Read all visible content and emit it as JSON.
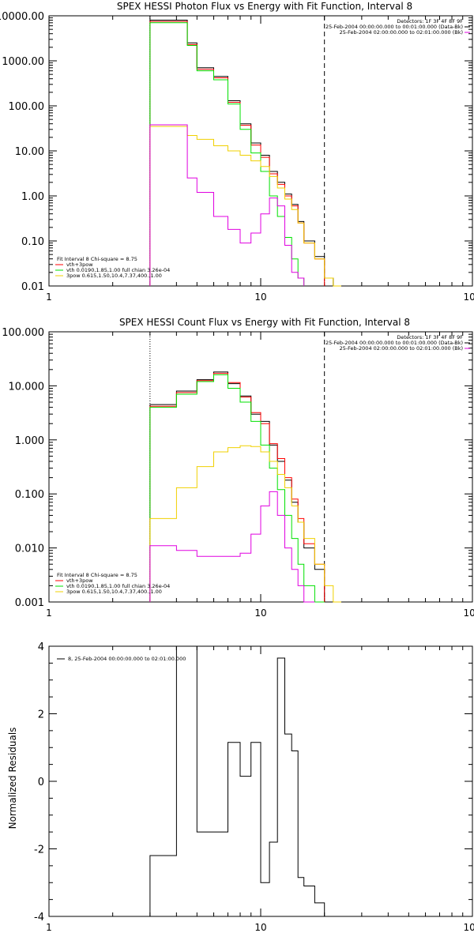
{
  "colors": {
    "black": "#000000",
    "red": "#ff0000",
    "green": "#00e000",
    "yellow": "#f0d000",
    "magenta": "#e000e0"
  },
  "chart_data": [
    {
      "type": "line",
      "title": "SPEX HESSI Photon Flux vs Energy with Fit Function, Interval 8",
      "scale": {
        "x": "log",
        "y": "log"
      },
      "xlim": [
        1,
        100
      ],
      "ylim": [
        0.01,
        10000
      ],
      "xticks": [
        "1",
        "10",
        "100"
      ],
      "yticks": [
        "10000.00",
        "1000.00",
        "100.00",
        "10.00",
        "1.00",
        "0.10",
        "0.01"
      ],
      "vline_dotted": 3,
      "vline_dashed": 20,
      "header": {
        "detectors": "Detectors: 1F 3F 4F 8F 9F",
        "line1": "25-Feb-2004 00:00:00.000 to 00:01:00.000 (Data-Bk)",
        "line2": "25-Feb-2004 02:00:00.000 to 02:01:00.000 (Bk)"
      },
      "legend": {
        "title": "Fit Interval 8   Chi-square = 8.75",
        "entries": [
          {
            "label": "vth+3pow",
            "color": "#ff0000"
          },
          {
            "label": "vth 0.0190,1.85,1.00  full chian 3.26e-04",
            "color": "#00e000"
          },
          {
            "label": "3pow 0.615,1.50,10.4,7.37,400.,1.00",
            "color": "#f0d000"
          }
        ]
      },
      "bin_edges": [
        3,
        4,
        4.5,
        5,
        6,
        7,
        8,
        9,
        10,
        11,
        12,
        13,
        14,
        15,
        16,
        18,
        20,
        22,
        24,
        26,
        28
      ],
      "series": [
        {
          "color": "#000000",
          "values": [
            8000,
            8000,
            2500,
            700,
            450,
            130,
            40,
            15,
            8,
            3.5,
            2.0,
            1.1,
            0.65,
            0.27,
            0.1,
            0.045,
            0.015,
            null,
            null,
            null
          ]
        },
        {
          "color": "#ff0000",
          "values": [
            7500,
            7500,
            2300,
            650,
            420,
            120,
            37,
            13.5,
            7.2,
            3.1,
            1.8,
            1.0,
            0.6,
            0.25,
            0.09,
            0.04,
            null,
            null,
            null,
            null
          ]
        },
        {
          "color": "#00e000",
          "values": [
            7000,
            7000,
            2200,
            600,
            380,
            110,
            30,
            9,
            3.5,
            1.0,
            0.35,
            0.12,
            0.04,
            0.015,
            null,
            null,
            null,
            null,
            null,
            null
          ]
        },
        {
          "color": "#f0d000",
          "values": [
            35,
            35,
            22,
            18,
            13,
            10,
            8,
            6,
            4.5,
            2.7,
            1.5,
            0.85,
            0.5,
            0.25,
            0.09,
            0.04,
            0.015,
            0.008,
            null,
            null
          ]
        },
        {
          "color": "#e000e0",
          "values": [
            38,
            38,
            2.5,
            1.2,
            0.35,
            0.18,
            0.09,
            0.15,
            0.4,
            0.9,
            0.6,
            0.08,
            0.02,
            0.015,
            null,
            null,
            null,
            null,
            null,
            null
          ]
        }
      ]
    },
    {
      "type": "line",
      "title": "SPEX HESSI Count Flux vs Energy with Fit Function, Interval 8",
      "scale": {
        "x": "log",
        "y": "log"
      },
      "xlim": [
        1,
        100
      ],
      "ylim": [
        0.001,
        100
      ],
      "xticks": [
        "1",
        "10",
        "100"
      ],
      "yticks": [
        "100.000",
        "10.000",
        "1.000",
        "0.100",
        "0.010",
        "0.001"
      ],
      "vline_dotted": 3,
      "vline_dashed": 20,
      "header": {
        "detectors": "Detectors: 1F 3F 4F 8F 9F",
        "line1": "25-Feb-2004 00:00:00.000 to 00:01:00.000 (Data-Bk)",
        "line2": "25-Feb-2004 02:00:00.000 to 02:01:00.000 (Bk)"
      },
      "legend": {
        "title": "Fit Interval 8   Chi-square = 8.75",
        "entries": [
          {
            "label": "vth+3pow",
            "color": "#ff0000"
          },
          {
            "label": "vth 0.0190,1.85,1.00  full chian 3.26e-04",
            "color": "#00e000"
          },
          {
            "label": "3pow 0.615,1.50,10.4,7.37,400.,1.00",
            "color": "#f0d000"
          }
        ]
      },
      "bin_edges": [
        3,
        4,
        5,
        6,
        7,
        8,
        9,
        10,
        11,
        12,
        13,
        14,
        15,
        16,
        18,
        20,
        22,
        24,
        26,
        28
      ],
      "series": [
        {
          "color": "#000000",
          "values": [
            4.5,
            8,
            13,
            18,
            11,
            6.5,
            3.0,
            2.2,
            0.8,
            0.4,
            0.18,
            0.07,
            0.03,
            0.01,
            0.004,
            null,
            null,
            null,
            null
          ]
        },
        {
          "color": "#ff0000",
          "values": [
            4.2,
            7.5,
            12.5,
            17,
            11.5,
            6.2,
            3.2,
            2.0,
            0.85,
            0.45,
            0.2,
            0.08,
            0.035,
            0.012,
            0.005,
            null,
            null,
            null,
            null
          ]
        },
        {
          "color": "#00e000",
          "values": [
            4,
            7,
            12,
            16,
            9,
            5,
            2.2,
            0.8,
            0.3,
            0.12,
            0.04,
            0.015,
            0.005,
            0.002,
            0.001,
            null,
            null,
            null,
            null
          ]
        },
        {
          "color": "#f0d000",
          "values": [
            0.035,
            0.13,
            0.32,
            0.6,
            0.72,
            0.78,
            0.75,
            0.6,
            0.4,
            0.23,
            0.13,
            0.06,
            0.03,
            0.015,
            0.005,
            0.002,
            0.001,
            null,
            null
          ]
        },
        {
          "color": "#e000e0",
          "values": [
            0.011,
            0.009,
            0.007,
            0.007,
            0.007,
            0.008,
            0.018,
            0.06,
            0.11,
            0.04,
            0.01,
            0.004,
            0.002,
            0.001,
            null,
            null,
            null,
            null,
            null
          ]
        }
      ]
    },
    {
      "type": "line",
      "title": "",
      "scale": {
        "x": "log",
        "y": "linear"
      },
      "xlim": [
        1,
        100
      ],
      "ylim": [
        -4,
        4
      ],
      "ylabel": "Normalized Residuals",
      "xticks": [
        "1",
        "10",
        "100"
      ],
      "yticks": [
        "4",
        "2",
        "0",
        "-2",
        "-4"
      ],
      "legend": {
        "entries": [
          {
            "label": "8, 25-Feb-2004 00:00:00.000 to 02:01:00.000",
            "color": "#000000"
          }
        ]
      },
      "bin_edges": [
        3,
        4,
        4.5,
        5,
        6,
        7,
        7.5,
        8,
        9,
        10,
        11,
        12,
        13,
        14,
        15,
        16,
        18,
        20
      ],
      "series": [
        {
          "color": "#000000",
          "values": [
            -2.2,
            4.05,
            4.05,
            -1.5,
            -1.5,
            1.15,
            1.15,
            0.15,
            1.15,
            -3.0,
            -1.8,
            3.65,
            1.4,
            0.9,
            -2.85,
            -3.1,
            -3.6
          ]
        }
      ]
    }
  ]
}
